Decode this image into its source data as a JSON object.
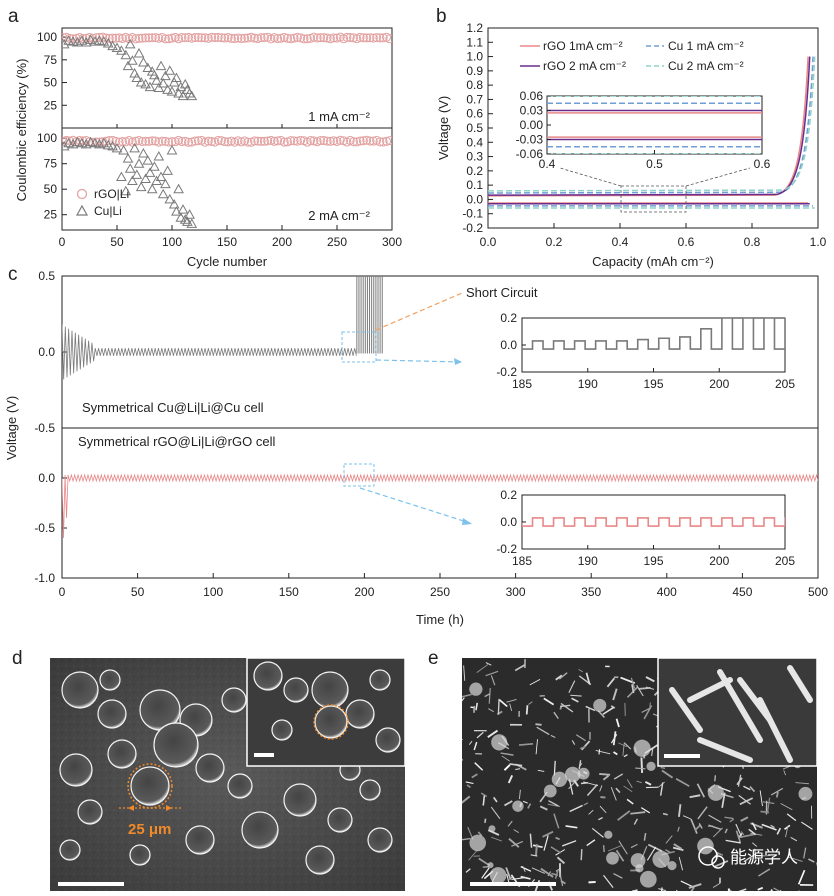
{
  "panel_letters": [
    "a",
    "b",
    "c",
    "d",
    "e"
  ],
  "colors": {
    "rgo": "#e88888",
    "rgo_marker": "#e3a0a0",
    "cu": "#7a7a7a",
    "rgo_2mA": "#6a2d8c",
    "cu_1mA_dash": "#6f9fd8",
    "cu_2mA_dash": "#8ed3c6",
    "callout_orange": "#f0a062",
    "callout_blue": "#7cc2ea",
    "scale_orange": "#f08a2a"
  },
  "chart_data": [
    {
      "id": "a",
      "type": "scatter",
      "ylabel": "Coulombic efficiency (%)",
      "xlabel": "Cycle number",
      "xlim": [
        0,
        300
      ],
      "xticks": [
        "0",
        "50",
        "100",
        "150",
        "200",
        "250",
        "300"
      ],
      "legend": [
        "rGO|Li",
        "Cu|Li"
      ],
      "subplots": [
        {
          "annotation": "1 mA cm⁻²",
          "ylim": [
            0,
            110
          ],
          "yticks": [
            "25",
            "50",
            "75",
            "100"
          ],
          "series": [
            {
              "name": "rGO|Li",
              "marker": "circle",
              "x_range": [
                1,
                298
              ],
              "y_level": 99
            },
            {
              "name": "Cu|Li",
              "marker": "triangle",
              "x": [
                2,
                6,
                10,
                14,
                18,
                22,
                26,
                30,
                34,
                38,
                42,
                46,
                50,
                54,
                58,
                60,
                62,
                64,
                66,
                68,
                70,
                72,
                74,
                76,
                78,
                80,
                82,
                84,
                86,
                88,
                90,
                92,
                94,
                96,
                98,
                100,
                102,
                104,
                106,
                108,
                110,
                112,
                114,
                116,
                118
              ],
              "y": [
                92,
                96,
                95,
                94,
                96,
                94,
                97,
                95,
                96,
                95,
                93,
                90,
                88,
                85,
                80,
                68,
                92,
                74,
                60,
                55,
                82,
                50,
                72,
                48,
                66,
                45,
                62,
                58,
                52,
                44,
                68,
                49,
                57,
                42,
                63,
                40,
                50,
                55,
                38,
                45,
                35,
                48,
                42,
                38,
                35
              ]
            }
          ]
        },
        {
          "annotation": "2 mA cm⁻²",
          "ylim": [
            10,
            110
          ],
          "yticks": [
            "25",
            "50",
            "75",
            "100"
          ],
          "series": [
            {
              "name": "rGO|Li",
              "marker": "circle",
              "x_range": [
                1,
                298
              ],
              "y_level": 97
            },
            {
              "name": "Cu|Li",
              "marker": "triangle",
              "x": [
                2,
                6,
                10,
                14,
                18,
                22,
                26,
                30,
                34,
                38,
                42,
                46,
                50,
                54,
                56,
                58,
                60,
                62,
                64,
                66,
                68,
                70,
                72,
                74,
                76,
                78,
                80,
                82,
                84,
                86,
                88,
                90,
                92,
                94,
                96,
                98,
                100,
                102,
                104,
                106,
                108,
                110,
                112,
                114,
                116,
                118
              ],
              "y": [
                92,
                95,
                94,
                96,
                95,
                94,
                96,
                95,
                94,
                95,
                93,
                92,
                90,
                62,
                88,
                48,
                80,
                70,
                58,
                90,
                64,
                75,
                52,
                85,
                60,
                78,
                66,
                50,
                72,
                58,
                82,
                62,
                45,
                55,
                68,
                40,
                88,
                35,
                28,
                50,
                22,
                30,
                20,
                18,
                25,
                16
              ]
            }
          ]
        }
      ]
    },
    {
      "id": "b",
      "type": "line",
      "xlabel": "Capacity (mAh cm⁻²)",
      "ylabel": "Voltage (V)",
      "xlim": [
        0,
        1.0
      ],
      "ylim": [
        -0.2,
        1.2
      ],
      "xticks": [
        "0.0",
        "0.2",
        "0.4",
        "0.6",
        "0.8",
        "1.0"
      ],
      "yticks": [
        "-0.2",
        "-0.1",
        "0.0",
        "0.1",
        "0.2",
        "0.3",
        "0.4",
        "0.5",
        "0.6",
        "0.7",
        "0.8",
        "0.9",
        "1.0",
        "1.1",
        "1.2"
      ],
      "series": [
        {
          "name": "rGO 1mA cm⁻²",
          "style": "solid",
          "color": "#e88888",
          "plateau_low": -0.025,
          "plateau_high": 0.025,
          "rise_end": 0.97
        },
        {
          "name": "Cu 1 mA cm⁻²",
          "style": "dashed",
          "color": "#6f9fd8",
          "plateau_low": -0.045,
          "plateau_high": 0.045,
          "rise_end": 0.985
        },
        {
          "name": "rGO 2 mA cm⁻²",
          "style": "solid",
          "color": "#6a2d8c",
          "plateau_low": -0.03,
          "plateau_high": 0.03,
          "rise_end": 0.975
        },
        {
          "name": "Cu 2 mA cm⁻²",
          "style": "dashed",
          "color": "#8ed3c6",
          "plateau_low": -0.06,
          "plateau_high": 0.06,
          "rise_end": 0.99
        }
      ],
      "inset": {
        "xlim": [
          0.4,
          0.6
        ],
        "ylim": [
          -0.06,
          0.06
        ],
        "xticks": [
          "0.4",
          "0.5",
          "0.6"
        ],
        "yticks": [
          "0.06",
          "0.03",
          "0.00",
          "-0.03",
          "-0.06"
        ]
      }
    },
    {
      "id": "c",
      "type": "line",
      "xlabel": "Time (h)",
      "ylabel": "Voltage (V)",
      "xlim": [
        0,
        500
      ],
      "xticks": [
        "0",
        "50",
        "100",
        "150",
        "200",
        "250",
        "300",
        "350",
        "400",
        "450",
        "500"
      ],
      "subplots": [
        {
          "label": "Symmetrical  Cu@Li|Li@Cu cell",
          "ylim": [
            -0.5,
            0.5
          ],
          "yticks": [
            "-0.5",
            "0.0",
            "0.5"
          ],
          "annotation": "Short Circuit",
          "series": {
            "name": "Cu@Li|Li@Cu",
            "color": "#7a7a7a",
            "overpotential_start": 0.15,
            "overpotential_plateau": 0.025,
            "short_circuit_time": 195
          },
          "inset": {
            "xlim": [
              185,
              205
            ],
            "ylim": [
              -0.2,
              0.2
            ],
            "xticks": [
              "185",
              "190",
              "195",
              "200",
              "205"
            ],
            "yticks": [
              "0.2",
              "0.0",
              "-0.2"
            ],
            "cycle_heights": [
              0.03,
              0.03,
              0.03,
              0.03,
              0.03,
              0.04,
              0.05,
              0.06,
              0.12,
              0.2,
              0.2,
              0.2,
              0.2
            ]
          }
        },
        {
          "label": "Symmetrical rGO@Li|Li@rGO cell",
          "ylim": [
            -1.0,
            0.5
          ],
          "yticks": [
            "-1.0",
            "-0.5",
            "0.0"
          ],
          "series": {
            "name": "rGO@Li|Li@rGO",
            "color": "#e88888",
            "initial_dip": -0.6,
            "overpotential_plateau": 0.03
          },
          "inset": {
            "xlim": [
              185,
              205
            ],
            "ylim": [
              -0.2,
              0.2
            ],
            "xticks": [
              "185",
              "190",
              "195",
              "200",
              "205"
            ],
            "yticks": [
              "0.2",
              "0.0",
              "-0.2"
            ],
            "cycle_height": 0.03
          }
        }
      ]
    }
  ],
  "images": {
    "d": {
      "label": "d",
      "scale_label": "25 μm"
    },
    "e": {
      "label": "e"
    }
  },
  "watermark": "能源学人"
}
